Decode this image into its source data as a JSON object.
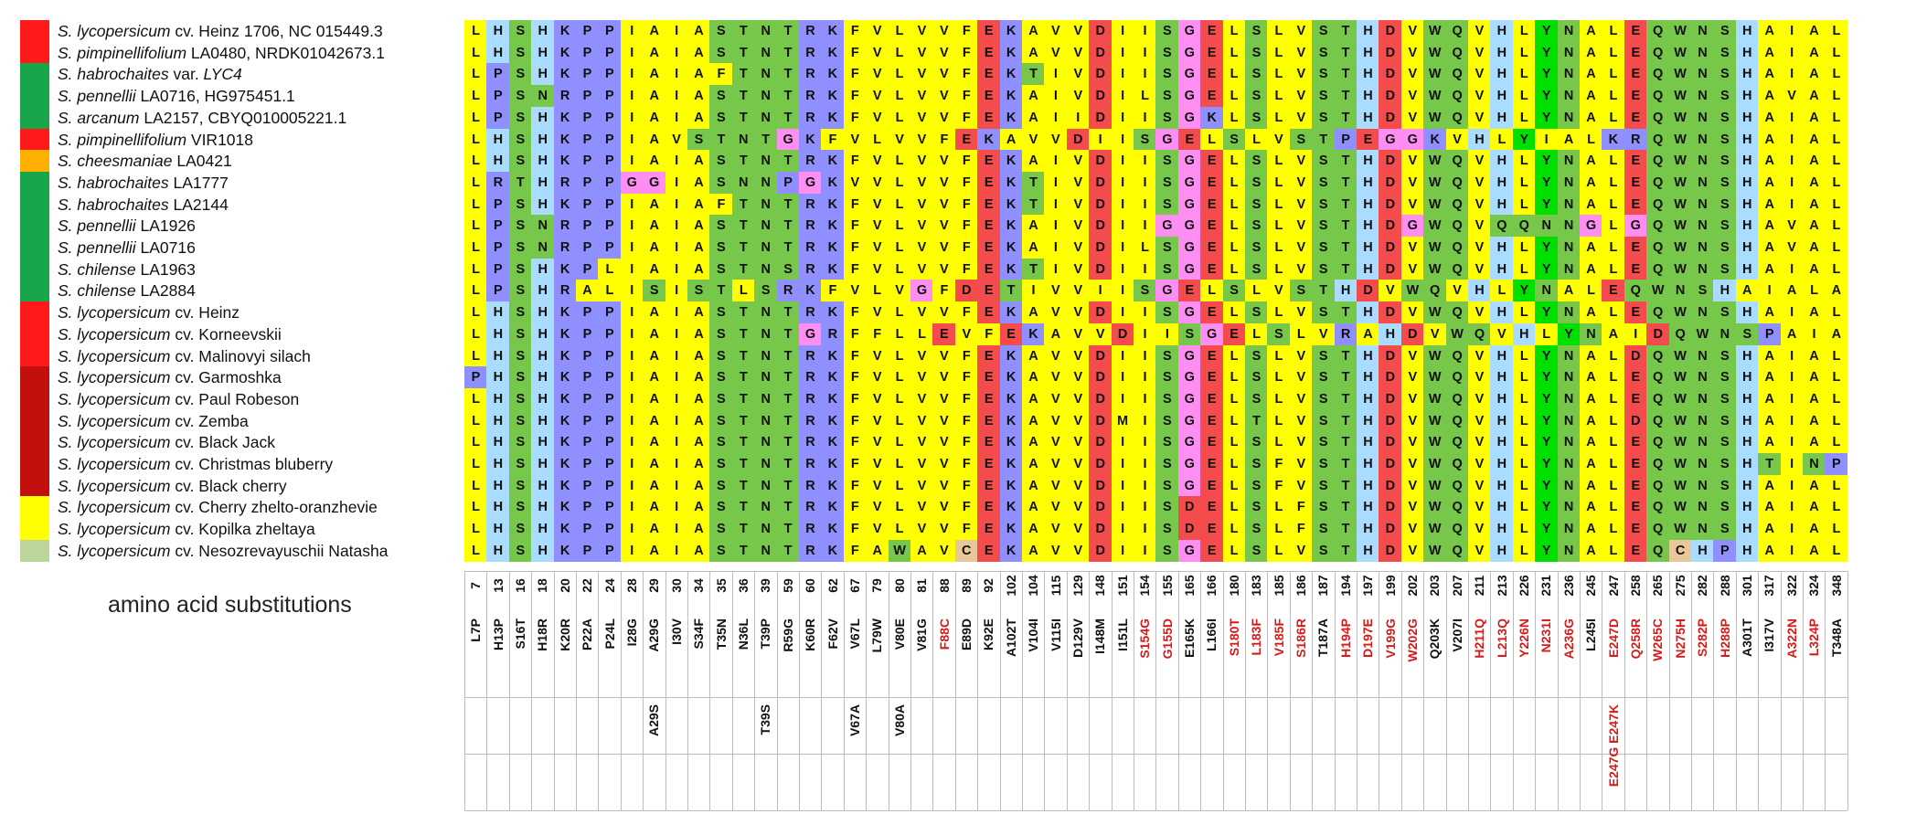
{
  "figure": {
    "title": "amino acid substitutions"
  },
  "colors": {
    "species": {
      "red": "#ff1a1a",
      "green": "#19a64a",
      "orange": "#ffb000",
      "darkred": "#c40f0f",
      "yellow": "#ffff00",
      "sage": "#bcd59b"
    },
    "residues": {
      "G": "#ff8ef2",
      "P": "#8f8fff",
      "D": "#f44c4c",
      "E": "#f44c4c",
      "K": "#8f8fff",
      "R": "#8f8fff",
      "H": "#a9dcff",
      "N": "#77c74a",
      "Q": "#77c74a",
      "S": "#77c74a",
      "T": "#77c74a",
      "C": "#e8c79a",
      "W": "#77c74a",
      "Y": "#00e000",
      "A": "#ffff00",
      "V": "#ffff00",
      "L": "#ffff00",
      "I": "#ffff00",
      "M": "#ffff00",
      "F": "#ffff00"
    },
    "substitution_highlight": "#d61a1a",
    "substitution_default": "#111111"
  },
  "species": [
    {
      "genus": "S. lycopersicum",
      "rest": "cv. Heinz 1706, NC 015449.3",
      "rest_italic": "",
      "color": "red"
    },
    {
      "genus": "S. pimpinellifolium",
      "rest": "LA0480, NRDK01042673.1",
      "rest_italic": "",
      "color": "red"
    },
    {
      "genus": "S. habrochaites",
      "rest": "var. ",
      "rest_italic": "LYC4",
      "color": "green"
    },
    {
      "genus": "S. pennellii",
      "rest": "LA0716, HG975451.1",
      "rest_italic": "",
      "color": "green"
    },
    {
      "genus": "S. arcanum",
      "rest": "LA2157, CBYQ010005221.1",
      "rest_italic": "",
      "color": "green"
    },
    {
      "genus": "S. pimpinellifolium",
      "rest": "VIR1018",
      "rest_italic": "",
      "color": "red"
    },
    {
      "genus": "S. cheesmaniae",
      "rest": "LA0421",
      "rest_italic": "",
      "color": "orange"
    },
    {
      "genus": "S. habrochaites",
      "rest": "LA1777",
      "rest_italic": "",
      "color": "green"
    },
    {
      "genus": "S. habrochaites",
      "rest": "LA2144",
      "rest_italic": "",
      "color": "green"
    },
    {
      "genus": "S. pennellii",
      "rest": "LA1926",
      "rest_italic": "",
      "color": "green"
    },
    {
      "genus": "S. pennellii",
      "rest": "LA0716",
      "rest_italic": "",
      "color": "green"
    },
    {
      "genus": "S. chilense",
      "rest": "LA1963",
      "rest_italic": "",
      "color": "green"
    },
    {
      "genus": "S. chilense",
      "rest": "LA2884",
      "rest_italic": "",
      "color": "green"
    },
    {
      "genus": "S. lycopersicum",
      "rest": "cv. Heinz",
      "rest_italic": "",
      "color": "red"
    },
    {
      "genus": "S. lycopersicum",
      "rest": "cv. Korneevskii",
      "rest_italic": "",
      "color": "red"
    },
    {
      "genus": "S. lycopersicum",
      "rest": "cv. Malinovyi silach",
      "rest_italic": "",
      "color": "red"
    },
    {
      "genus": "S. lycopersicum",
      "rest": "cv. Garmoshka",
      "rest_italic": "",
      "color": "darkred"
    },
    {
      "genus": "S. lycopersicum",
      "rest": "cv. Paul Robeson",
      "rest_italic": "",
      "color": "darkred"
    },
    {
      "genus": "S. lycopersicum",
      "rest": "cv. Zemba",
      "rest_italic": "",
      "color": "darkred"
    },
    {
      "genus": "S. lycopersicum",
      "rest": "cv. Black Jack",
      "rest_italic": "",
      "color": "darkred"
    },
    {
      "genus": "S. lycopersicum",
      "rest": "cv. Christmas bluberry",
      "rest_italic": "",
      "color": "darkred"
    },
    {
      "genus": "S. lycopersicum",
      "rest": "cv. Black cherry",
      "rest_italic": "",
      "color": "darkred"
    },
    {
      "genus": "S. lycopersicum",
      "rest": "cv. Cherry zhelto-oranzhevie",
      "rest_italic": "",
      "color": "yellow"
    },
    {
      "genus": "S. lycopersicum",
      "rest": "cv. Kopilka zheltaya",
      "rest_italic": "",
      "color": "yellow"
    },
    {
      "genus": "S. lycopersicum",
      "rest": "cv. Nesozrevayuschii Natasha",
      "rest_italic": "",
      "color": "sage"
    }
  ],
  "alignment": [
    "LHSHKPPIAIASTNTRKFVLVVFEKAVVDIISGELSLVSTHDVWQVHLYNALEQWNSHAIALT",
    "LHSHKPPIAIASTNTRKFVLVVFEKAVVDIISGELSLVSTHDVWQVHLYNALEQWNSHAIALT",
    "LPSHKPPIAIAFTNTRKFVLVVFEKTIVDIISGELSLVSTHDVWQVHLYNALEQWNSHAIALA",
    "LPSNRPPIAIASTNTRKFVLVVFEKAIVDILSGELSLVSTHDVWQVHLYNALEQWNSHAVALA",
    "LPSHKPPIAIASTNTRKFVLVVFEKAIIDIISGKLSLVSTHDVWQVHLYNALEQWNSHAIALA",
    "LHSHKPPIAVSTNTGKFVLVVFEKAVVDIISGELSLVSTPEGGKVHLYIALKRQWNSHAIALT",
    "LHSHKPPIAIASTNTRKFVLVVFEKAIVDIISGELSLVSTHDVWQVHLYNALEQWNSHAIALT",
    "LRTHRPPGGIASNNPGKVVLVVFEKTIVDIISGELSLVSTHDVWQVHLYNALEQWNSHAIALA",
    "LPSHKPPIAIAFTNTRKFVLVVFEKTIVDIISGELSLVSTHDVWQVHLYNALEQWNSHAIALA",
    "LPSNRPPIAIASTNTRKFVLVVFEKAIVDIIGGELSLVSTHDGWQVQQNNGLGQWNSHAVALA",
    "LPSNRPPIAIASTNTRKFVLVVFEKAIVDILSGELSLVSTHDVWQVHLYNALEQWNSHAVALA",
    "LPSHKPLIAIASTNSRKFVLVVFEKTIVDIISGELSLVSTHDVWQVHLYNALEQWNSHAIALA",
    "LPSHRALISISTLSRKFVLVGFDETIVVIISGELSLVSTHDVWQVHLYNALEQWNSHAIALA",
    "LHSHKPPIAIASTNTRKFVLVVFEKAVVDIISGELSLVSTHDVWQVHLYNALEQWNSHAIALT",
    "LHSHKPPIAIASTNTGRFFLLEVFEKAVVDIISGELSLVRAHDVWQVHLYNAIDQWNSPAIALT",
    "LHSHKPPIAIASTNTRKFVLVVFEKAVVDIISGELSLVSTHDVWQVHLYNALDQWNSHAIALT",
    "PHSHKPPIAIASTNTRKFVLVVFEKAVVDIISGELSLVSTHDVWQVHLYNALEQWNSHAIALT",
    "LHSHKPPIAIASTNTRKFVLVVFEKAVVDIISGELSLVSTHDVWQVHLYNALEQWNSHAIALT",
    "LHSHKPPIAIASTNTRKFVLVVFEKAVVDMISGELTLVSTHDVWQVHLYNALDQWNSHAIALT",
    "LHSHKPPIAIASTNTRKFVLVVFEKAVVDIISGELSLVSTHDVWQVHLYNALEQWNSHAIALT",
    "LHSHKPPIAIASTNTRKFVLVVFEKAVVDIISGELSFVSTHDVWQVHLYNALEQWNSHTINPT",
    "LHSHKPPIAIASTNTRKFVLVVFEKAVVDIISGELSFVSTHDVWQVHLYNALEQWNSHAIALT",
    "LHSHKPPIAIASTNTRKFVLVVFEKAVVDIISDELSLFSTHDVWQVHLYNALEQWNSHAIALT",
    "LHSHKPPIAIASTNTRKFVLVVFEKAVVDIISDELSLFSTHDVWQVHLYNALEQWNSHAIALT",
    "LHSHKPPIAIASTNTRKFAWAVCEKAVVDIISGELSLVSTHDVWQVHLYNALEQCHPHAIALT"
  ],
  "positions": [
    "7",
    "13",
    "16",
    "18",
    "20",
    "22",
    "24",
    "28",
    "29",
    "30",
    "34",
    "35",
    "36",
    "39",
    "59",
    "60",
    "62",
    "67",
    "79",
    "80",
    "81",
    "88",
    "89",
    "92",
    "102",
    "104",
    "115",
    "129",
    "148",
    "151",
    "154",
    "155",
    "165",
    "166",
    "180",
    "183",
    "185",
    "186",
    "187",
    "194",
    "197",
    "199",
    "202",
    "203",
    "207",
    "211",
    "213",
    "226",
    "231",
    "236",
    "245",
    "247",
    "258",
    "265",
    "275",
    "282",
    "288",
    "301",
    "317",
    "322",
    "324",
    "348"
  ],
  "substitutions": [
    {
      "row1": "L7P",
      "row2": "",
      "red": false
    },
    {
      "row1": "H13P",
      "row2": "",
      "red": false
    },
    {
      "row1": "S16T",
      "row2": "",
      "red": false
    },
    {
      "row1": "H18R",
      "row2": "",
      "red": false
    },
    {
      "row1": "K20R",
      "row2": "",
      "red": false
    },
    {
      "row1": "P22A",
      "row2": "",
      "red": false
    },
    {
      "row1": "P24L",
      "row2": "",
      "red": false
    },
    {
      "row1": "I28G",
      "row2": "",
      "red": false
    },
    {
      "row1": "A29G",
      "row2": "A29S",
      "red": false
    },
    {
      "row1": "I30V",
      "row2": "",
      "red": false
    },
    {
      "row1": "S34F",
      "row2": "",
      "red": false
    },
    {
      "row1": "T35N",
      "row2": "",
      "red": false
    },
    {
      "row1": "N36L",
      "row2": "",
      "red": false
    },
    {
      "row1": "T39P",
      "row2": "T39S",
      "red": false
    },
    {
      "row1": "R59G",
      "row2": "",
      "red": false
    },
    {
      "row1": "K60R",
      "row2": "",
      "red": false
    },
    {
      "row1": "F62V",
      "row2": "",
      "red": false
    },
    {
      "row1": "V67L",
      "row2": "V67A",
      "red": false
    },
    {
      "row1": "L79W",
      "row2": "",
      "red": false
    },
    {
      "row1": "V80E",
      "row2": "V80A",
      "red": false
    },
    {
      "row1": "V81G",
      "row2": "",
      "red": false
    },
    {
      "row1": "F88C",
      "row2": "",
      "red": true
    },
    {
      "row1": "E89D",
      "row2": "",
      "red": false
    },
    {
      "row1": "K92E",
      "row2": "",
      "red": false
    },
    {
      "row1": "A102T",
      "row2": "",
      "red": false
    },
    {
      "row1": "V104I",
      "row2": "",
      "red": false
    },
    {
      "row1": "V115I",
      "row2": "",
      "red": false
    },
    {
      "row1": "D129V",
      "row2": "",
      "red": false
    },
    {
      "row1": "I148M",
      "row2": "",
      "red": false
    },
    {
      "row1": "I151L",
      "row2": "",
      "red": false
    },
    {
      "row1": "S154G",
      "row2": "",
      "red": true
    },
    {
      "row1": "G155D",
      "row2": "",
      "red": true
    },
    {
      "row1": "E165K",
      "row2": "",
      "red": false
    },
    {
      "row1": "L166I",
      "row2": "",
      "red": false
    },
    {
      "row1": "S180T",
      "row2": "",
      "red": true
    },
    {
      "row1": "L183F",
      "row2": "",
      "red": true
    },
    {
      "row1": "V185F",
      "row2": "",
      "red": true
    },
    {
      "row1": "S186R",
      "row2": "",
      "red": true
    },
    {
      "row1": "T187A",
      "row2": "",
      "red": false
    },
    {
      "row1": "H194P",
      "row2": "",
      "red": true
    },
    {
      "row1": "D197E",
      "row2": "",
      "red": true
    },
    {
      "row1": "V199G",
      "row2": "",
      "red": true
    },
    {
      "row1": "W202G",
      "row2": "",
      "red": true
    },
    {
      "row1": "Q203K",
      "row2": "",
      "red": false
    },
    {
      "row1": "V207I",
      "row2": "",
      "red": false
    },
    {
      "row1": "H211Q",
      "row2": "",
      "red": true
    },
    {
      "row1": "L213Q",
      "row2": "",
      "red": true
    },
    {
      "row1": "Y226N",
      "row2": "",
      "red": true
    },
    {
      "row1": "N231I",
      "row2": "",
      "red": true
    },
    {
      "row1": "A236G",
      "row2": "",
      "red": true
    },
    {
      "row1": "L245I",
      "row2": "",
      "red": false
    },
    {
      "row1": "E247D",
      "row2": "E247G E247K",
      "red": true
    },
    {
      "row1": "Q258R",
      "row2": "",
      "red": true
    },
    {
      "row1": "W265C",
      "row2": "",
      "red": true
    },
    {
      "row1": "N275H",
      "row2": "",
      "red": true
    },
    {
      "row1": "S282P",
      "row2": "",
      "red": true
    },
    {
      "row1": "H288P",
      "row2": "",
      "red": true
    },
    {
      "row1": "A301T",
      "row2": "",
      "red": false
    },
    {
      "row1": "I317V",
      "row2": "",
      "red": false
    },
    {
      "row1": "A322N",
      "row2": "",
      "red": true
    },
    {
      "row1": "L324P",
      "row2": "",
      "red": true
    },
    {
      "row1": "T348A",
      "row2": "",
      "red": false
    }
  ]
}
